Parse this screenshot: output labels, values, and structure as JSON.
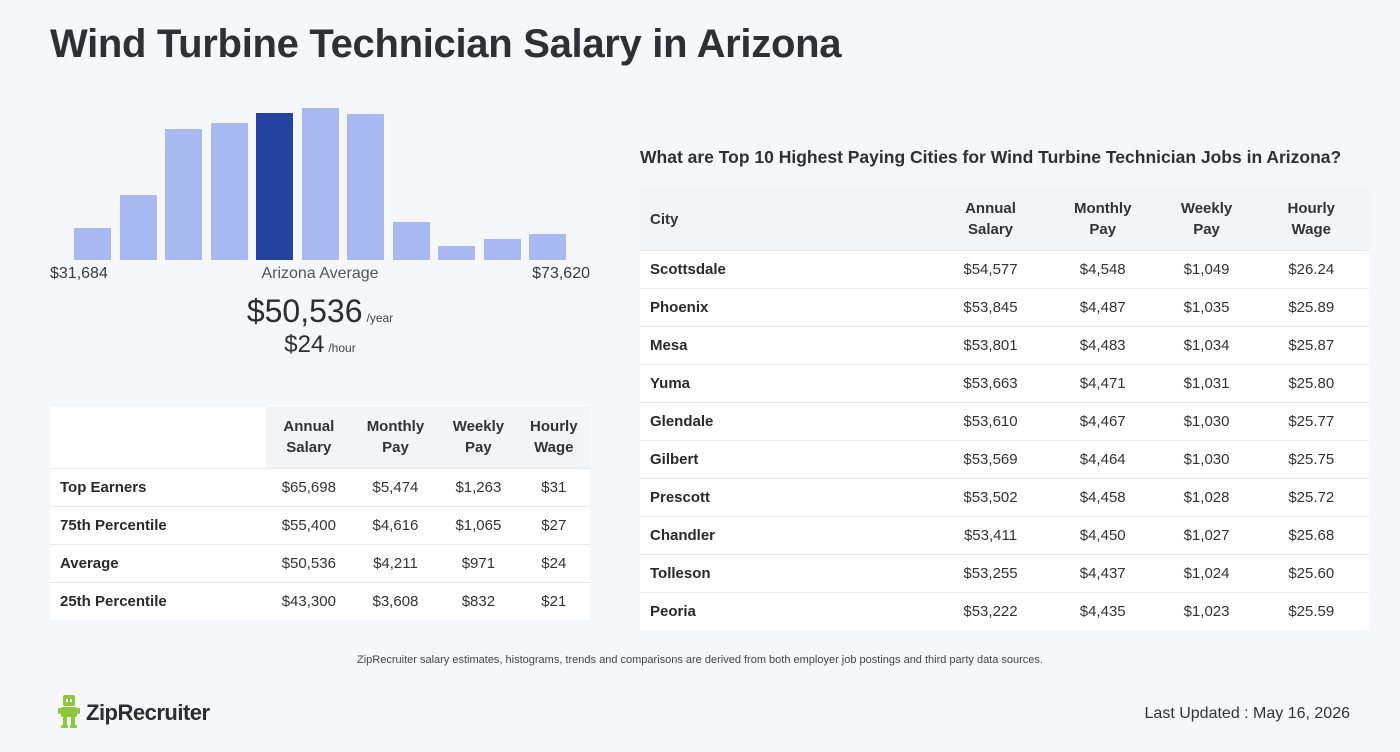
{
  "title": "Wind Turbine Technician Salary in Arizona",
  "histogram": {
    "heights": [
      0.21,
      0.43,
      0.86,
      0.9,
      0.97,
      1.0,
      0.96,
      0.25,
      0.09,
      0.14,
      0.17
    ],
    "highlight_index": 4,
    "min_label": "$31,684",
    "mid_label": "Arizona Average",
    "max_label": "$73,620",
    "bar_color": "#a9b9f2",
    "highlight_color": "#2443a0"
  },
  "average": {
    "yearly": "$50,536",
    "yearly_unit": "/year",
    "hourly": "$24",
    "hourly_unit": "/hour"
  },
  "percentile_table": {
    "headers": [
      "Annual Salary",
      "Monthly Pay",
      "Weekly Pay",
      "Hourly Wage"
    ],
    "rows": [
      {
        "label": "Top Earners",
        "values": [
          "$65,698",
          "$5,474",
          "$1,263",
          "$31"
        ]
      },
      {
        "label": "75th Percentile",
        "values": [
          "$55,400",
          "$4,616",
          "$1,065",
          "$27"
        ]
      },
      {
        "label": "Average",
        "values": [
          "$50,536",
          "$4,211",
          "$971",
          "$24"
        ]
      },
      {
        "label": "25th Percentile",
        "values": [
          "$43,300",
          "$3,608",
          "$832",
          "$21"
        ]
      }
    ]
  },
  "cities": {
    "title": "What are Top 10 Highest Paying Cities for Wind Turbine Technician Jobs in Arizona?",
    "headers": [
      "City",
      "Annual Salary",
      "Monthly Pay",
      "Weekly Pay",
      "Hourly Wage"
    ],
    "rows": [
      {
        "city": "Scottsdale",
        "values": [
          "$54,577",
          "$4,548",
          "$1,049",
          "$26.24"
        ]
      },
      {
        "city": "Phoenix",
        "values": [
          "$53,845",
          "$4,487",
          "$1,035",
          "$25.89"
        ]
      },
      {
        "city": "Mesa",
        "values": [
          "$53,801",
          "$4,483",
          "$1,034",
          "$25.87"
        ]
      },
      {
        "city": "Yuma",
        "values": [
          "$53,663",
          "$4,471",
          "$1,031",
          "$25.80"
        ]
      },
      {
        "city": "Glendale",
        "values": [
          "$53,610",
          "$4,467",
          "$1,030",
          "$25.77"
        ]
      },
      {
        "city": "Gilbert",
        "values": [
          "$53,569",
          "$4,464",
          "$1,030",
          "$25.75"
        ]
      },
      {
        "city": "Prescott",
        "values": [
          "$53,502",
          "$4,458",
          "$1,028",
          "$25.72"
        ]
      },
      {
        "city": "Chandler",
        "values": [
          "$53,411",
          "$4,450",
          "$1,027",
          "$25.68"
        ]
      },
      {
        "city": "Tolleson",
        "values": [
          "$53,255",
          "$4,437",
          "$1,024",
          "$25.60"
        ]
      },
      {
        "city": "Peoria",
        "values": [
          "$53,222",
          "$4,435",
          "$1,023",
          "$25.59"
        ]
      }
    ]
  },
  "disclaimer": "ZipRecruiter salary estimates, histograms, trends and comparisons are derived from both employer job postings and third party data sources.",
  "logo_text": "ZipRecruiter",
  "logo_icon": "zip-mascot-icon",
  "logo_color": "#8dc63f",
  "last_updated": "Last Updated : May 16, 2026"
}
